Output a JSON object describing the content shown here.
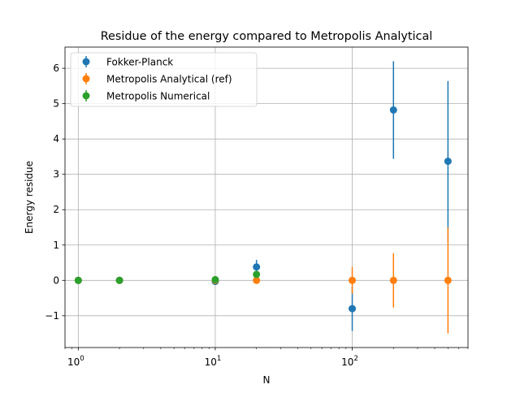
{
  "chart_data": {
    "type": "scatter",
    "title": "Residue of the energy compared to Metropolis Analytical",
    "xlabel": "N",
    "ylabel": "Energy residue",
    "xscale": "log",
    "xlim": [
      0.8,
      700
    ],
    "ylim": [
      -1.9,
      6.6
    ],
    "grid": true,
    "legend_position": "top-left",
    "x_ticks": [
      {
        "value": 1,
        "base": "10",
        "exp": "0"
      },
      {
        "value": 10,
        "base": "10",
        "exp": "1"
      },
      {
        "value": 100,
        "base": "10",
        "exp": "2"
      }
    ],
    "y_ticks": [
      -1,
      0,
      1,
      2,
      3,
      4,
      5,
      6
    ],
    "y_tick_labels": [
      "−1",
      "0",
      "1",
      "2",
      "3",
      "4",
      "5",
      "6"
    ],
    "series": [
      {
        "name": "Fokker-Planck",
        "color": "#1f77b4",
        "x": [
          1,
          2,
          10,
          20,
          100,
          200,
          500
        ],
        "y": [
          0.0,
          0.0,
          -0.03,
          0.38,
          -0.8,
          4.82,
          3.37
        ],
        "err": [
          0.0,
          0.0,
          0.03,
          0.2,
          0.63,
          1.38,
          2.27
        ]
      },
      {
        "name": "Metropolis Analytical (ref)",
        "color": "#ff7f0e",
        "x": [
          1,
          2,
          10,
          20,
          100,
          200,
          500
        ],
        "y": [
          0,
          0,
          0,
          0,
          0,
          0,
          0
        ],
        "err": [
          0.0,
          0.0,
          0.0,
          0.0,
          0.38,
          0.77,
          1.5
        ]
      },
      {
        "name": "Metropolis Numerical",
        "color": "#2ca02c",
        "x": [
          1,
          2,
          10,
          20
        ],
        "y": [
          0.0,
          0.0,
          0.02,
          0.17
        ],
        "err": [
          0.0,
          0.0,
          0.0,
          0.0
        ]
      }
    ]
  }
}
